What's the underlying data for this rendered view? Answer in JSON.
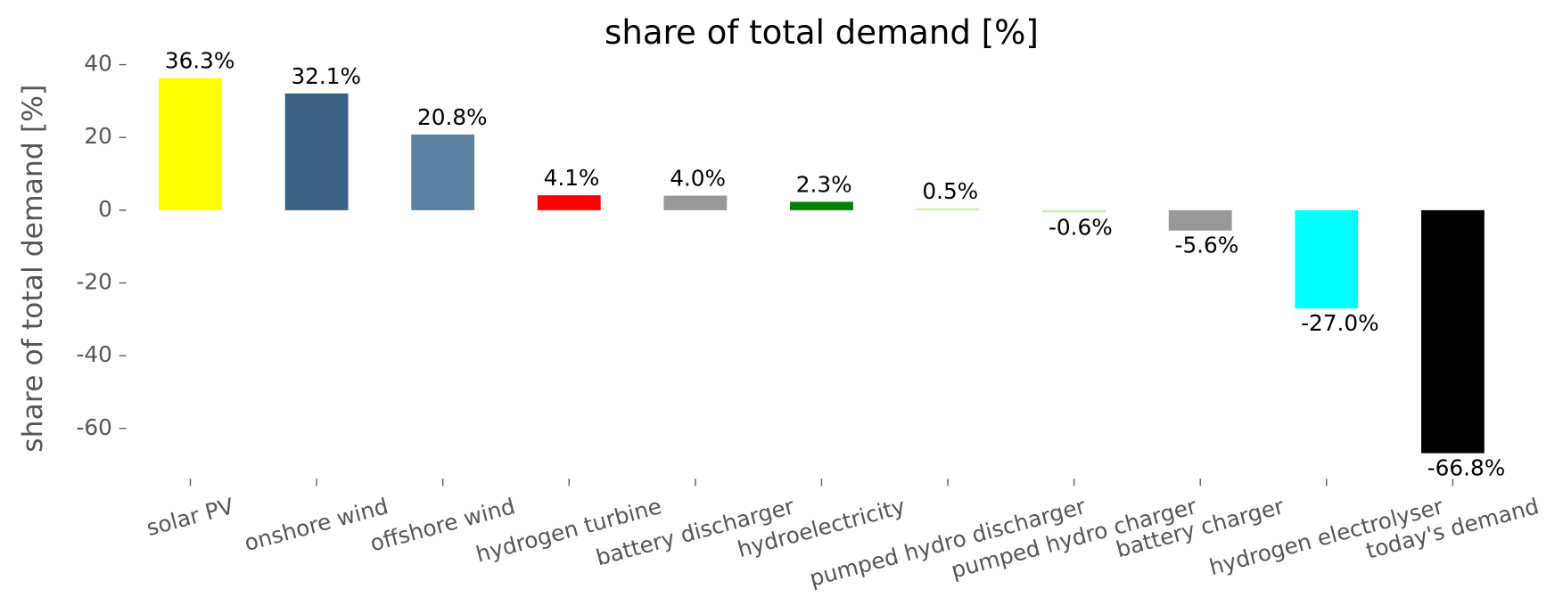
{
  "chart_data": {
    "type": "bar",
    "title": "share of total demand [%]",
    "y_label": "share of total demand [%]",
    "categories": [
      "solar PV",
      "onshore wind",
      "offshore wind",
      "hydrogen turbine",
      "battery discharger",
      "hydroelectricity",
      "pumped hydro discharger",
      "pumped hydro charger",
      "battery charger",
      "hydrogen electrolyser",
      "today's demand"
    ],
    "values": [
      36.3,
      32.1,
      20.8,
      4.1,
      4.0,
      2.3,
      0.5,
      -0.6,
      -5.6,
      -27.0,
      -66.8
    ],
    "value_labels": [
      "36.3%",
      "32.1%",
      "20.8%",
      "4.1%",
      "4.0%",
      "2.3%",
      "0.5%",
      "-0.6%",
      "-5.6%",
      "-27.0%",
      "-66.8%"
    ],
    "colors": [
      "#ffff00",
      "#3b6182",
      "#5b82a3",
      "#ff0000",
      "#999999",
      "#008000",
      "#c9f0a0",
      "#c9f0a0",
      "#999999",
      "#00ffff",
      "#000000"
    ],
    "ylim": [
      -73,
      44
    ],
    "yticks": [
      40,
      20,
      0,
      -20,
      -40,
      -60
    ],
    "grid": false
  }
}
